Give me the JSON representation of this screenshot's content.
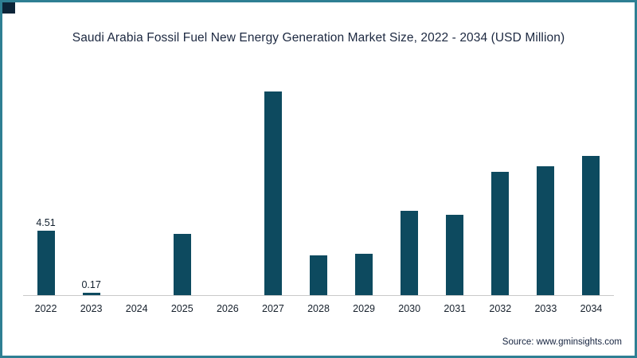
{
  "title_text": "Saudi Arabia Fossil Fuel New Energy Generation Market Size, 2022 - 2034 (USD Million)",
  "source": {
    "label": "Source: www.gminsights.com"
  },
  "frame": {
    "border_color": "#2e7f93",
    "corner_color": "#0c2438"
  },
  "chart_data": {
    "type": "bar",
    "title": "Saudi Arabia Fossil Fuel New Energy Generation Market Size, 2022 - 2034 (USD Million)",
    "categories": [
      "2022",
      "2023",
      "2024",
      "2025",
      "2026",
      "2027",
      "2028",
      "2029",
      "2030",
      "2031",
      "2032",
      "2033",
      "2034"
    ],
    "values": [
      4.51,
      0.17,
      0,
      4.3,
      0,
      14.2,
      2.8,
      2.9,
      5.9,
      5.6,
      8.6,
      9.0,
      9.7
    ],
    "data_labels": [
      "4.51",
      "0.17",
      "",
      "",
      "",
      "",
      "",
      "",
      "",
      "",
      "",
      "",
      ""
    ],
    "bar_color": "#0d4a5f",
    "xlabel": "",
    "ylabel": "",
    "ylim": [
      0,
      15
    ],
    "grid": false,
    "legend": "none"
  }
}
